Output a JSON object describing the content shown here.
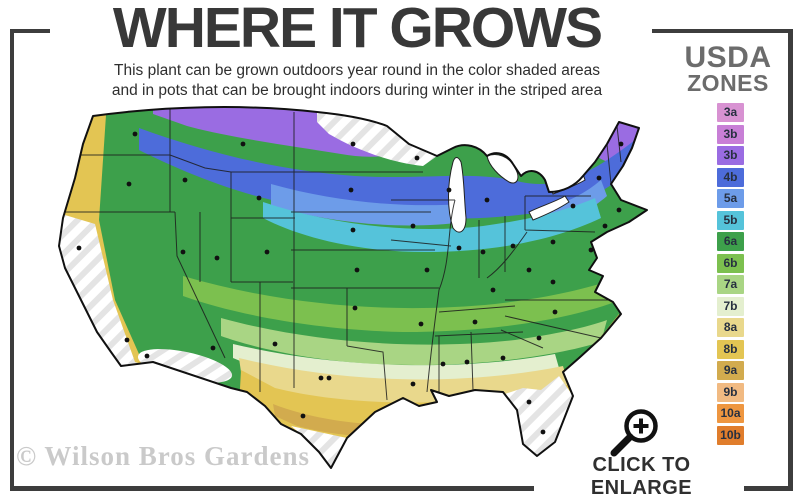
{
  "header": {
    "title": "WHERE IT GROWS",
    "subtitle_line1": "This plant can be grown outdoors year round in the color shaded areas",
    "subtitle_line2": "and in pots that can be brought indoors during winter in the striped area"
  },
  "legend": {
    "title_line1": "USDA",
    "title_line2": "ZONES",
    "zones": [
      {
        "label": "3a",
        "color": "#d892d2"
      },
      {
        "label": "3b",
        "color": "#c87fd6"
      },
      {
        "label": "3b",
        "color": "#9a6ce2"
      },
      {
        "label": "4b",
        "color": "#4d6cda"
      },
      {
        "label": "5a",
        "color": "#6d9ce9"
      },
      {
        "label": "5b",
        "color": "#55c3da"
      },
      {
        "label": "6a",
        "color": "#3da04b"
      },
      {
        "label": "6b",
        "color": "#7cc04f"
      },
      {
        "label": "7a",
        "color": "#a9d584"
      },
      {
        "label": "7b",
        "color": "#e4efcf"
      },
      {
        "label": "8a",
        "color": "#e9d88c"
      },
      {
        "label": "8b",
        "color": "#e3c553"
      },
      {
        "label": "9a",
        "color": "#d2ab4e"
      },
      {
        "label": "9b",
        "color": "#f1ba82"
      },
      {
        "label": "10a",
        "color": "#ee9640"
      },
      {
        "label": "10b",
        "color": "#e07d2c"
      }
    ]
  },
  "map": {
    "watermark": "© Wilson Bros Gardens"
  },
  "footer": {
    "enlarge_label": "CLICK TO ENLARGE"
  }
}
